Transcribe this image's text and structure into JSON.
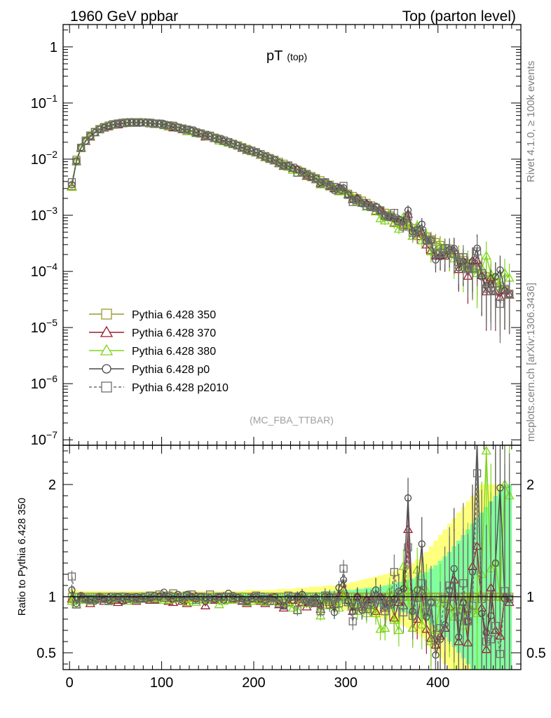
{
  "header": {
    "left": "1960 GeV ppbar",
    "right": "Top (parton level)"
  },
  "side": {
    "rivet": "Rivet 4.1.0, ≥ 100k events",
    "mcplots": "mcplots.cern.ch [arXiv:1306.3436]"
  },
  "colors": {
    "p350": "#9a9a2c",
    "p370": "#9b1b30",
    "p380": "#7fd61a",
    "p0": "#4a4a4a",
    "p2010": "#6e6e6e",
    "band_yellow": "#ffff7f",
    "band_green": "#7fff9f"
  },
  "chart_data": {
    "type": "line",
    "title": "pT",
    "title_sub": "(top)",
    "analysis": "(MC_FBA_TTBAR)",
    "xlim": [
      -7,
      490
    ],
    "x_ticks": [
      "0",
      "100",
      "200",
      "300",
      "400"
    ],
    "main": {
      "yscale": "log",
      "ylim": [
        8e-08,
        2.5
      ],
      "y_ticks": [
        {
          "base": "1",
          "exp": ""
        },
        {
          "base": "10",
          "exp": "−1"
        },
        {
          "base": "10",
          "exp": "−2"
        },
        {
          "base": "10",
          "exp": "−3"
        },
        {
          "base": "10",
          "exp": "−4"
        },
        {
          "base": "10",
          "exp": "−5"
        },
        {
          "base": "10",
          "exp": "−6"
        },
        {
          "base": "10",
          "exp": "−7"
        }
      ]
    },
    "ratio": {
      "ylabel": "Ratio to Pythia 6.428 350",
      "ylim": [
        0.35,
        2.35
      ],
      "y_ticks": [
        "0.5",
        "1",
        "2"
      ]
    },
    "x": [
      2.5,
      7.5,
      12.5,
      17.5,
      22.5,
      27.5,
      32.5,
      37.5,
      42.5,
      47.5,
      52.5,
      57.5,
      62.5,
      67.5,
      72.5,
      77.5,
      82.5,
      87.5,
      92.5,
      97.5,
      102.5,
      107.5,
      112.5,
      117.5,
      122.5,
      127.5,
      132.5,
      137.5,
      142.5,
      147.5,
      152.5,
      157.5,
      162.5,
      167.5,
      172.5,
      177.5,
      182.5,
      187.5,
      192.5,
      197.5,
      202.5,
      207.5,
      212.5,
      217.5,
      222.5,
      227.5,
      232.5,
      237.5,
      242.5,
      247.5,
      252.5,
      257.5,
      262.5,
      267.5,
      272.5,
      277.5,
      282.5,
      287.5,
      292.5,
      297.5,
      302.5,
      307.5,
      312.5,
      317.5,
      322.5,
      327.5,
      332.5,
      337.5,
      342.5,
      347.5,
      352.5,
      357.5,
      362.5,
      367.5,
      372.5,
      377.5,
      382.5,
      387.5,
      392.5,
      397.5,
      402.5,
      407.5,
      412.5,
      417.5,
      422.5,
      427.5,
      432.5,
      437.5,
      442.5,
      447.5,
      452.5,
      457.5,
      462.5,
      467.5,
      472.5,
      477.5
    ],
    "reference": [
      0.0033,
      0.0098,
      0.016,
      0.0215,
      0.0265,
      0.0307,
      0.0343,
      0.0374,
      0.0398,
      0.0418,
      0.0433,
      0.0444,
      0.0452,
      0.0456,
      0.0456,
      0.0454,
      0.0449,
      0.0442,
      0.0433,
      0.0422,
      0.041,
      0.0396,
      0.0382,
      0.0366,
      0.0351,
      0.0334,
      0.0319,
      0.0303,
      0.0287,
      0.0272,
      0.0257,
      0.0242,
      0.0228,
      0.0214,
      0.0201,
      0.0188,
      0.0176,
      0.0164,
      0.0153,
      0.0142,
      0.0132,
      0.0123,
      0.0114,
      0.0105,
      0.00975,
      0.009,
      0.00831,
      0.00766,
      0.00705,
      0.00649,
      0.00596,
      0.00547,
      0.00502,
      0.0046,
      0.00421,
      0.00385,
      0.00352,
      0.00321,
      0.00293,
      0.00267,
      0.00243,
      0.00221,
      0.00201,
      0.00183,
      0.00166,
      0.0015,
      0.00136,
      0.00123,
      0.00111,
      0.001,
      0.000903,
      0.000813,
      0.000731,
      0.000656,
      0.000588,
      0.000527,
      0.000471,
      0.00042,
      0.000374,
      0.000333,
      0.000296,
      0.000262,
      0.000232,
      0.000205,
      0.000181,
      0.00016,
      0.00014,
      0.000123,
      0.000108,
      9.42e-05,
      8.22e-05,
      7.16e-05,
      6.22e-05,
      5.39e-05,
      4.66e-05,
      4.02e-05
    ],
    "band": {
      "yellow": [
        0.07,
        0.06,
        0.05,
        0.05,
        0.05,
        0.05,
        0.05,
        0.05,
        0.05,
        0.05,
        0.05,
        0.05,
        0.05,
        0.05,
        0.05,
        0.05,
        0.05,
        0.05,
        0.05,
        0.05,
        0.05,
        0.05,
        0.05,
        0.05,
        0.05,
        0.05,
        0.05,
        0.05,
        0.05,
        0.05,
        0.05,
        0.05,
        0.05,
        0.05,
        0.05,
        0.05,
        0.05,
        0.05,
        0.06,
        0.06,
        0.06,
        0.06,
        0.06,
        0.06,
        0.06,
        0.07,
        0.07,
        0.07,
        0.07,
        0.08,
        0.08,
        0.08,
        0.09,
        0.09,
        0.09,
        0.1,
        0.1,
        0.1,
        0.11,
        0.12,
        0.12,
        0.13,
        0.14,
        0.15,
        0.16,
        0.17,
        0.18,
        0.19,
        0.2,
        0.21,
        0.23,
        0.24,
        0.26,
        0.28,
        0.3,
        0.33,
        0.36,
        0.4,
        0.45,
        0.5,
        0.55,
        0.6,
        0.65,
        0.7,
        0.75,
        0.8,
        0.85,
        0.9,
        0.95,
        1.0,
        1.0,
        1.0,
        1.0,
        1.0,
        1.0,
        1.0
      ],
      "green": [
        0.04,
        0.03,
        0.03,
        0.03,
        0.03,
        0.03,
        0.03,
        0.03,
        0.03,
        0.03,
        0.03,
        0.03,
        0.03,
        0.03,
        0.03,
        0.03,
        0.03,
        0.03,
        0.03,
        0.03,
        0.03,
        0.03,
        0.03,
        0.03,
        0.03,
        0.03,
        0.03,
        0.03,
        0.03,
        0.03,
        0.03,
        0.03,
        0.03,
        0.03,
        0.03,
        0.03,
        0.03,
        0.03,
        0.03,
        0.03,
        0.03,
        0.03,
        0.03,
        0.03,
        0.03,
        0.03,
        0.03,
        0.03,
        0.03,
        0.04,
        0.04,
        0.04,
        0.04,
        0.04,
        0.04,
        0.05,
        0.05,
        0.05,
        0.05,
        0.06,
        0.06,
        0.06,
        0.07,
        0.07,
        0.08,
        0.08,
        0.09,
        0.09,
        0.1,
        0.11,
        0.12,
        0.13,
        0.14,
        0.15,
        0.16,
        0.18,
        0.2,
        0.22,
        0.25,
        0.28,
        0.32,
        0.36,
        0.4,
        0.45,
        0.5,
        0.55,
        0.6,
        0.65,
        0.7,
        0.75,
        0.8,
        0.85,
        0.9,
        0.95,
        1.0,
        1.0
      ]
    },
    "series": [
      {
        "name": "Pythia 6.428 350",
        "color_key": "p350",
        "marker": "square",
        "dash": false,
        "ratio": [
          1,
          1,
          1,
          1,
          1,
          1,
          1,
          1,
          1,
          1,
          1,
          1,
          1,
          1,
          1,
          1,
          1,
          1,
          1,
          1,
          1,
          1,
          1,
          1,
          1,
          1,
          1,
          1,
          1,
          1,
          1,
          1,
          1,
          1,
          1,
          1,
          1,
          1,
          1,
          1,
          1,
          1,
          1,
          1,
          1,
          1,
          1,
          1,
          1,
          1,
          1,
          1,
          1,
          1,
          1,
          1,
          1,
          1,
          1,
          1,
          1,
          1,
          1,
          1,
          1,
          1,
          1,
          1,
          1,
          1,
          1,
          1,
          1,
          1,
          1,
          1,
          1,
          1,
          1,
          1,
          1,
          1,
          1,
          1,
          1,
          1,
          1,
          1,
          1,
          1,
          1,
          1,
          1,
          1,
          1,
          1
        ]
      },
      {
        "name": "Pythia 6.428 370",
        "color_key": "p370",
        "marker": "triangle",
        "dash": false,
        "ratio": [
          0.98,
          0.93,
          0.99,
          0.97,
          0.94,
          0.97,
          0.98,
          0.96,
          0.99,
          0.97,
          0.95,
          0.97,
          0.98,
          0.98,
          0.96,
          0.98,
          0.99,
          0.97,
          0.97,
          1.0,
          1.0,
          0.96,
          0.95,
          0.99,
          0.96,
          0.94,
          0.99,
          1.0,
          0.98,
          0.92,
          0.99,
          0.97,
          0.99,
          1.0,
          0.97,
          0.98,
          0.99,
          0.96,
          0.94,
          0.99,
          0.98,
          0.96,
          0.94,
          0.98,
          0.96,
          0.93,
          0.9,
          0.95,
          0.97,
          1.0,
          0.95,
          0.91,
          0.97,
          0.94,
          0.89,
          0.98,
          0.95,
          0.93,
          1.01,
          1.06,
          0.97,
          0.87,
          1.0,
          0.91,
          0.97,
          0.98,
          0.87,
          1.0,
          0.9,
          0.98,
          0.81,
          0.95,
          0.92,
          1.6,
          0.72,
          0.8,
          1.05,
          0.71,
          0.63,
          0.57,
          0.65,
          0.72,
          0.91,
          1.15,
          0.6,
          0.95,
          0.59,
          1.27,
          1.45,
          0.9,
          0.53,
          1.08,
          0.7,
          0.65,
          1.0,
          0.95
        ]
      },
      {
        "name": "Pythia 6.428 380",
        "color_key": "p380",
        "marker": "triangle",
        "dash": false,
        "ratio": [
          0.96,
          0.93,
          0.97,
          0.98,
          0.96,
          0.97,
          1.0,
          0.98,
          0.96,
          0.98,
          0.99,
          1.0,
          0.96,
          0.98,
          0.97,
          1.0,
          0.99,
          0.98,
          0.98,
          0.99,
          0.97,
          0.97,
          1.0,
          0.98,
          0.98,
          0.95,
          0.97,
          0.95,
          0.98,
          0.97,
          0.99,
          0.99,
          0.93,
          0.96,
          0.97,
          0.97,
          0.99,
          1.0,
          0.95,
          0.96,
          0.99,
          0.97,
          0.95,
          0.96,
          0.98,
          0.95,
          0.95,
          0.94,
          0.9,
          0.88,
          0.99,
          0.94,
          0.96,
          0.95,
          0.83,
          0.98,
          0.92,
          0.96,
          0.9,
          1.02,
          0.95,
          0.93,
          0.87,
          0.95,
          0.85,
          0.92,
          0.85,
          0.71,
          0.72,
          1.05,
          0.79,
          0.7,
          1.27,
          1.05,
          0.72,
          1.24,
          0.75,
          1.05,
          0.6,
          0.7,
          0.94,
          0.95,
          0.9,
          0.82,
          0.92,
          0.74,
          1.0,
          0.88,
          0.85,
          1.2,
          2.3,
          1.25,
          1.3,
          1.0,
          2.0,
          1.9
        ]
      },
      {
        "name": "Pythia 6.428 p0",
        "color_key": "p0",
        "marker": "circle",
        "dash": false,
        "ratio": [
          1.06,
          0.94,
          1.01,
          0.98,
          0.98,
          0.96,
          1.0,
          0.98,
          0.97,
          0.99,
          1.0,
          0.96,
          1.0,
          0.99,
          1.0,
          0.98,
          0.98,
          0.99,
          1.01,
          1.0,
          1.04,
          1.0,
          0.98,
          1.02,
          0.97,
          1.02,
          1.0,
          0.98,
          1.0,
          0.96,
          0.99,
          0.98,
          1.0,
          0.97,
          1.03,
          1.01,
          0.99,
          0.98,
          0.96,
          0.98,
          1.0,
          0.98,
          0.97,
          0.99,
          1.0,
          0.97,
          0.92,
          0.99,
          0.97,
          1.0,
          1.02,
          0.96,
          0.95,
          0.99,
          0.92,
          1.0,
          1.0,
          0.86,
          1.08,
          1.15,
          0.96,
          0.87,
          1.0,
          0.88,
          0.97,
          0.94,
          1.06,
          1.0,
          0.91,
          0.94,
          0.98,
          1.05,
          1.07,
          1.88,
          0.87,
          1.06,
          1.47,
          0.82,
          0.95,
          0.48,
          0.62,
          0.75,
          1.06,
          1.25,
          0.64,
          0.95,
          0.78,
          1.22,
          2.4,
          0.85,
          0.68,
          0.83,
          1.3,
          1.97,
          0.98,
          0.99
        ]
      },
      {
        "name": "Pythia 6.428 p2010",
        "color_key": "p2010",
        "marker": "square",
        "dash": true,
        "ratio": [
          1.18,
          0.93,
          0.99,
          0.98,
          0.97,
          0.98,
          0.99,
          0.98,
          0.96,
          1.0,
          0.99,
          1.0,
          0.98,
          0.99,
          0.98,
          0.99,
          1.0,
          1.01,
          0.98,
          1.02,
          0.99,
          1.01,
          1.03,
          0.99,
          1.0,
          1.01,
          1.02,
          0.97,
          1.0,
          0.99,
          1.02,
          0.98,
          1.0,
          1.0,
          1.0,
          0.99,
          0.99,
          0.97,
          0.96,
          0.99,
          1.01,
          1.0,
          0.98,
          0.96,
          0.99,
          0.94,
          0.92,
          1.01,
          1.0,
          0.88,
          0.98,
          0.97,
          0.95,
          0.96,
          0.87,
          1.01,
          0.93,
          0.99,
          0.94,
          1.25,
          0.95,
          0.78,
          0.93,
          0.91,
          0.89,
          0.93,
          1.0,
          0.97,
          0.87,
          0.93,
          1.22,
          0.98,
          0.86,
          1.44,
          0.83,
          0.99,
          1.12,
          0.86,
          0.95,
          0.61,
          0.72,
          0.98,
          1.1,
          1.0,
          0.82,
          1.12,
          0.78,
          0.92,
          2.1,
          0.98,
          0.6,
          0.62,
          0.74,
          0.49,
          1.05,
          0.98
        ]
      }
    ]
  }
}
